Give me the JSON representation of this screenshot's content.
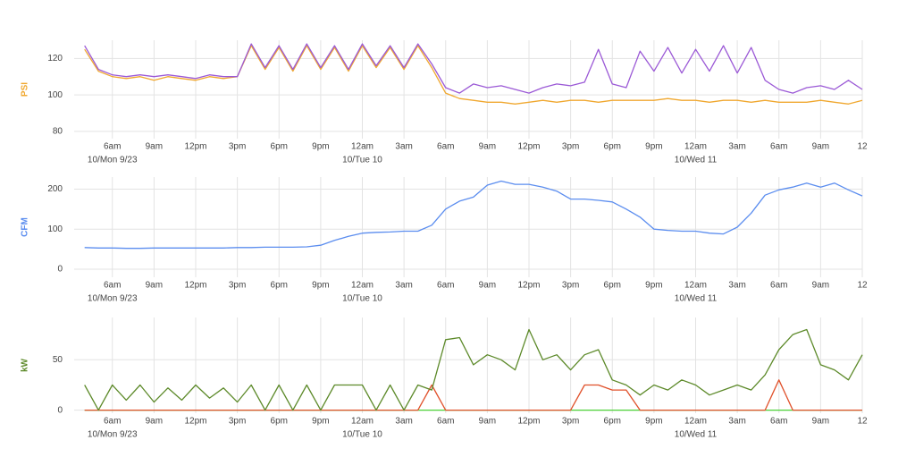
{
  "chart_data": [
    {
      "type": "line",
      "ylabel": "PSI",
      "ylabel_color": "#f0a830",
      "x": [
        4,
        5,
        6,
        7,
        8,
        9,
        10,
        11,
        12,
        13,
        14,
        15,
        16,
        17,
        18,
        19,
        20,
        21,
        22,
        23,
        24,
        25,
        26,
        27,
        28,
        29,
        30,
        31,
        32,
        33,
        34,
        35,
        36,
        37,
        38,
        39,
        40,
        41,
        42,
        43,
        44,
        45,
        46,
        47,
        48,
        49,
        50,
        51,
        52,
        53,
        54,
        55,
        56,
        57,
        58,
        59,
        60
      ],
      "xlim": [
        3.25,
        60
      ],
      "xticks": [
        {
          "value": 6,
          "label": "6am"
        },
        {
          "value": 9,
          "label": "9am"
        },
        {
          "value": 12,
          "label": "12pm"
        },
        {
          "value": 15,
          "label": "3pm"
        },
        {
          "value": 18,
          "label": "6pm"
        },
        {
          "value": 21,
          "label": "9pm"
        },
        {
          "value": 24,
          "label": "12am"
        },
        {
          "value": 27,
          "label": "3am"
        },
        {
          "value": 30,
          "label": "6am"
        },
        {
          "value": 33,
          "label": "9am"
        },
        {
          "value": 36,
          "label": "12pm"
        },
        {
          "value": 39,
          "label": "3pm"
        },
        {
          "value": 42,
          "label": "6pm"
        },
        {
          "value": 45,
          "label": "9pm"
        },
        {
          "value": 48,
          "label": "12am"
        },
        {
          "value": 51,
          "label": "3am"
        },
        {
          "value": 54,
          "label": "6am"
        },
        {
          "value": 57,
          "label": "9am"
        },
        {
          "value": 60,
          "label": "12"
        }
      ],
      "date_labels": [
        {
          "x": 6,
          "text": "10/Mon 9/23"
        },
        {
          "x": 24,
          "text": "10/Tue 10"
        },
        {
          "x": 48,
          "text": "10/Wed 11"
        }
      ],
      "ylim": [
        76,
        130
      ],
      "yticks": [
        80,
        100,
        120
      ],
      "grid": true,
      "series": [
        {
          "color": "#f0a830",
          "values": [
            125,
            113,
            110,
            109,
            110,
            108,
            110,
            109,
            108,
            110,
            109,
            110,
            127,
            114,
            126,
            113,
            127,
            114,
            126,
            113,
            127,
            115,
            126,
            114,
            127,
            115,
            101,
            98,
            97,
            96,
            96,
            95,
            96,
            97,
            96,
            97,
            97,
            96,
            97,
            97,
            97,
            97,
            98,
            97,
            97,
            96,
            97,
            97,
            96,
            97,
            96,
            96,
            96,
            97,
            96,
            95,
            97
          ]
        },
        {
          "color": "#9b59d6",
          "values": [
            127,
            114,
            111,
            110,
            111,
            110,
            111,
            110,
            109,
            111,
            110,
            110,
            128,
            115,
            127,
            114,
            128,
            115,
            127,
            114,
            128,
            116,
            127,
            115,
            128,
            117,
            104,
            101,
            106,
            104,
            105,
            103,
            101,
            104,
            106,
            105,
            107,
            125,
            106,
            104,
            124,
            113,
            126,
            112,
            125,
            113,
            127,
            112,
            126,
            108,
            103,
            101,
            104,
            105,
            103,
            108,
            103
          ]
        }
      ]
    },
    {
      "type": "line",
      "ylabel": "CFM",
      "ylabel_color": "#5b8def",
      "x": [
        4,
        5,
        6,
        7,
        8,
        9,
        10,
        11,
        12,
        13,
        14,
        15,
        16,
        17,
        18,
        19,
        20,
        21,
        22,
        23,
        24,
        25,
        26,
        27,
        28,
        29,
        30,
        31,
        32,
        33,
        34,
        35,
        36,
        37,
        38,
        39,
        40,
        41,
        42,
        43,
        44,
        45,
        46,
        47,
        48,
        49,
        50,
        51,
        52,
        53,
        54,
        55,
        56,
        57,
        58,
        59,
        60
      ],
      "xlim": [
        3.25,
        60
      ],
      "xticks": [
        {
          "value": 6,
          "label": "6am"
        },
        {
          "value": 9,
          "label": "9am"
        },
        {
          "value": 12,
          "label": "12pm"
        },
        {
          "value": 15,
          "label": "3pm"
        },
        {
          "value": 18,
          "label": "6pm"
        },
        {
          "value": 21,
          "label": "9pm"
        },
        {
          "value": 24,
          "label": "12am"
        },
        {
          "value": 27,
          "label": "3am"
        },
        {
          "value": 30,
          "label": "6am"
        },
        {
          "value": 33,
          "label": "9am"
        },
        {
          "value": 36,
          "label": "12pm"
        },
        {
          "value": 39,
          "label": "3pm"
        },
        {
          "value": 42,
          "label": "6pm"
        },
        {
          "value": 45,
          "label": "9pm"
        },
        {
          "value": 48,
          "label": "12am"
        },
        {
          "value": 51,
          "label": "3am"
        },
        {
          "value": 54,
          "label": "6am"
        },
        {
          "value": 57,
          "label": "9am"
        },
        {
          "value": 60,
          "label": "12"
        }
      ],
      "date_labels": [
        {
          "x": 6,
          "text": "10/Mon 9/23"
        },
        {
          "x": 24,
          "text": "10/Tue 10"
        },
        {
          "x": 48,
          "text": "10/Wed 11"
        }
      ],
      "ylim": [
        -20,
        230
      ],
      "yticks": [
        0,
        100,
        200
      ],
      "grid": true,
      "series": [
        {
          "color": "#5b8def",
          "values": [
            54,
            53,
            53,
            52,
            52,
            53,
            53,
            53,
            53,
            53,
            53,
            54,
            54,
            55,
            55,
            55,
            56,
            60,
            72,
            82,
            90,
            92,
            93,
            95,
            95,
            110,
            150,
            170,
            180,
            210,
            220,
            212,
            212,
            205,
            195,
            175,
            175,
            172,
            168,
            150,
            130,
            100,
            97,
            95,
            95,
            90,
            88,
            105,
            140,
            185,
            198,
            205,
            215,
            205,
            215,
            198,
            183
          ]
        }
      ]
    },
    {
      "type": "line",
      "ylabel": "kW",
      "ylabel_color": "#5d8a2a",
      "x": [
        4,
        5,
        6,
        7,
        8,
        9,
        10,
        11,
        12,
        13,
        14,
        15,
        16,
        17,
        18,
        19,
        20,
        21,
        22,
        23,
        24,
        25,
        26,
        27,
        28,
        29,
        30,
        31,
        32,
        33,
        34,
        35,
        36,
        37,
        38,
        39,
        40,
        41,
        42,
        43,
        44,
        45,
        46,
        47,
        48,
        49,
        50,
        51,
        52,
        53,
        54,
        55,
        56,
        57,
        58,
        59,
        60
      ],
      "xlim": [
        3.25,
        60
      ],
      "xticks": [
        {
          "value": 6,
          "label": "6am"
        },
        {
          "value": 9,
          "label": "9am"
        },
        {
          "value": 12,
          "label": "12pm"
        },
        {
          "value": 15,
          "label": "3pm"
        },
        {
          "value": 18,
          "label": "6pm"
        },
        {
          "value": 21,
          "label": "9pm"
        },
        {
          "value": 24,
          "label": "12am"
        },
        {
          "value": 27,
          "label": "3am"
        },
        {
          "value": 30,
          "label": "6am"
        },
        {
          "value": 33,
          "label": "9am"
        },
        {
          "value": 36,
          "label": "12pm"
        },
        {
          "value": 39,
          "label": "3pm"
        },
        {
          "value": 42,
          "label": "6pm"
        },
        {
          "value": 45,
          "label": "9pm"
        },
        {
          "value": 48,
          "label": "12am"
        },
        {
          "value": 51,
          "label": "3am"
        },
        {
          "value": 54,
          "label": "6am"
        },
        {
          "value": 57,
          "label": "9am"
        },
        {
          "value": 60,
          "label": "12"
        }
      ],
      "date_labels": [
        {
          "x": 6,
          "text": "10/Mon 9/23"
        },
        {
          "x": 24,
          "text": "10/Tue 10"
        },
        {
          "x": 48,
          "text": "10/Wed 11"
        }
      ],
      "ylim": [
        -3,
        92
      ],
      "yticks": [
        0,
        50
      ],
      "grid": true,
      "series": [
        {
          "color": "#4cd137",
          "values": [
            0,
            0,
            0,
            0,
            0,
            0,
            0,
            0,
            0,
            0,
            0,
            0,
            0,
            0,
            0,
            0,
            0,
            0,
            0,
            0,
            0,
            0,
            0,
            0,
            0,
            0,
            0,
            0,
            0,
            0,
            0,
            0,
            0,
            0,
            0,
            0,
            0,
            0,
            0,
            0,
            0,
            0,
            0,
            0,
            0,
            0,
            0,
            0,
            0,
            0,
            0,
            0,
            0,
            0,
            0,
            0,
            0
          ]
        },
        {
          "color": "#e0502a",
          "values": [
            0,
            0,
            0,
            0,
            0,
            0,
            0,
            0,
            0,
            0,
            0,
            0,
            0,
            0,
            0,
            0,
            0,
            0,
            0,
            0,
            0,
            0,
            0,
            0,
            0,
            25,
            0,
            0,
            0,
            0,
            0,
            0,
            0,
            0,
            0,
            0,
            25,
            25,
            20,
            20,
            0,
            0,
            0,
            0,
            0,
            0,
            0,
            0,
            0,
            0,
            30,
            0,
            0,
            0,
            0,
            0,
            0
          ]
        },
        {
          "color": "#5d8a2a",
          "values": [
            25,
            0,
            25,
            10,
            25,
            8,
            22,
            10,
            25,
            12,
            22,
            8,
            25,
            0,
            25,
            0,
            25,
            0,
            25,
            25,
            25,
            0,
            25,
            0,
            25,
            20,
            70,
            72,
            45,
            55,
            50,
            40,
            80,
            50,
            55,
            40,
            55,
            60,
            30,
            25,
            15,
            25,
            20,
            30,
            25,
            15,
            20,
            25,
            20,
            35,
            60,
            75,
            80,
            45,
            40,
            30,
            55
          ]
        }
      ]
    }
  ]
}
